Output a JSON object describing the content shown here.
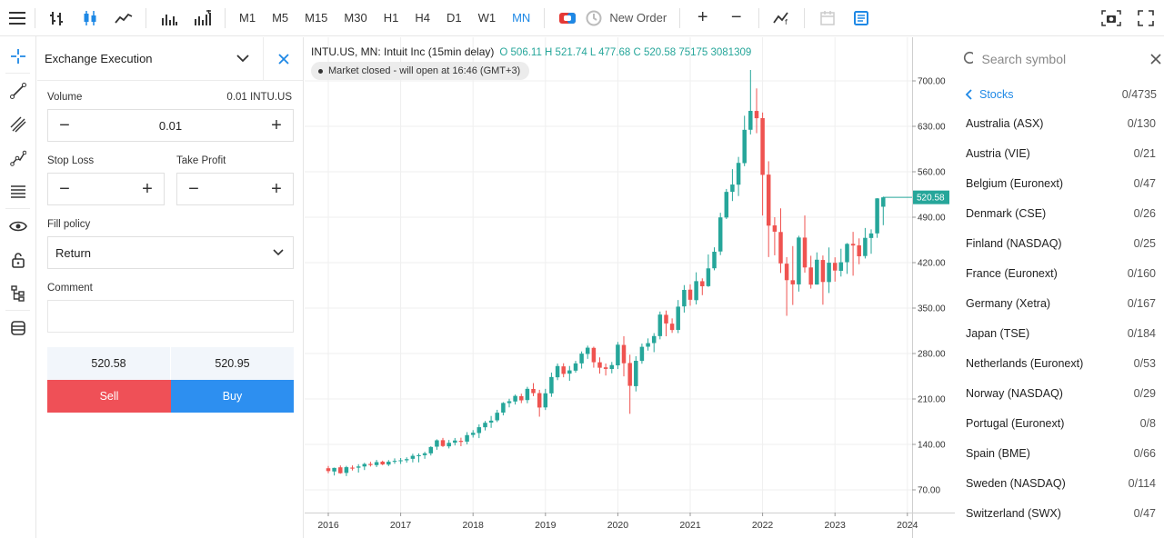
{
  "toolbar": {
    "timeframes": [
      "M1",
      "M5",
      "M15",
      "M30",
      "H1",
      "H4",
      "D1",
      "W1",
      "MN"
    ],
    "active_timeframe": "MN",
    "new_order_label": "New Order"
  },
  "order_panel": {
    "title": "Exchange Execution",
    "volume_label": "Volume",
    "volume_hint": "0.01 INTU.US",
    "volume_value": "0.01",
    "stop_loss_label": "Stop Loss",
    "take_profit_label": "Take Profit",
    "fill_policy_label": "Fill policy",
    "fill_policy_value": "Return",
    "comment_label": "Comment",
    "bid": "520.58",
    "ask": "520.95",
    "sell_label": "Sell",
    "buy_label": "Buy"
  },
  "chart": {
    "title": "INTU.US, MN: Intuit Inc (15min delay)",
    "ohlc": "O 506.11 H 521.74 L 477.68 C 520.58 75175 3081309",
    "market_status": "Market closed - will open at 16:46 (GMT+3)",
    "last_price_label": "520.58",
    "up_color": "#26a69a",
    "down_color": "#ef5350"
  },
  "chart_data": {
    "type": "candlestick",
    "title": "INTU.US, MN: Intuit Inc (15min delay)",
    "y_ticks": [
      70,
      140,
      210,
      280,
      350,
      420,
      490,
      560,
      630,
      700
    ],
    "ylim": [
      35,
      735
    ],
    "x_tick_labels": [
      "2016",
      "2017",
      "2018",
      "2019",
      "2020",
      "2021",
      "2022",
      "2023",
      "2024"
    ],
    "x_tick_positions": [
      2016,
      2017,
      2018,
      2019,
      2020,
      2021,
      2022,
      2023,
      2024
    ],
    "last_close": 520.58,
    "candles": [
      {
        "x": 2016.0,
        "o": 103.3,
        "h": 106.8,
        "l": 95.6,
        "c": 98.9
      },
      {
        "x": 2016.083,
        "o": 98.3,
        "h": 104.3,
        "l": 92.1,
        "c": 103.8
      },
      {
        "x": 2016.167,
        "o": 104.7,
        "h": 107.6,
        "l": 94.8,
        "c": 95.6
      },
      {
        "x": 2016.25,
        "o": 96.1,
        "h": 106.9,
        "l": 91.2,
        "c": 104.9
      },
      {
        "x": 2016.333,
        "o": 104.3,
        "h": 107.6,
        "l": 99.8,
        "c": 102.7
      },
      {
        "x": 2016.417,
        "o": 104.1,
        "h": 109.5,
        "l": 96.6,
        "c": 106.0
      },
      {
        "x": 2016.5,
        "o": 106.0,
        "h": 111.7,
        "l": 100.5,
        "c": 109.8
      },
      {
        "x": 2016.583,
        "o": 109.9,
        "h": 113.2,
        "l": 105.9,
        "c": 108.2
      },
      {
        "x": 2016.667,
        "o": 108.1,
        "h": 116.1,
        "l": 105.1,
        "c": 112.7
      },
      {
        "x": 2016.75,
        "o": 113.4,
        "h": 115.0,
        "l": 107.9,
        "c": 109.2
      },
      {
        "x": 2016.833,
        "o": 108.9,
        "h": 115.9,
        "l": 106.6,
        "c": 113.3
      },
      {
        "x": 2016.917,
        "o": 113.3,
        "h": 118.5,
        "l": 110.1,
        "c": 114.6
      },
      {
        "x": 2017.0,
        "o": 114.8,
        "h": 119.0,
        "l": 109.9,
        "c": 115.5
      },
      {
        "x": 2017.083,
        "o": 115.5,
        "h": 120.1,
        "l": 111.8,
        "c": 117.3
      },
      {
        "x": 2017.167,
        "o": 117.8,
        "h": 125.6,
        "l": 112.3,
        "c": 122.4
      },
      {
        "x": 2017.25,
        "o": 121.8,
        "h": 126.2,
        "l": 112.3,
        "c": 123.3
      },
      {
        "x": 2017.333,
        "o": 123.4,
        "h": 128.6,
        "l": 117.8,
        "c": 126.2
      },
      {
        "x": 2017.417,
        "o": 126.2,
        "h": 137.1,
        "l": 122.9,
        "c": 136.0
      },
      {
        "x": 2017.5,
        "o": 136.5,
        "h": 147.8,
        "l": 131.7,
        "c": 146.3
      },
      {
        "x": 2017.583,
        "o": 146.5,
        "h": 150.0,
        "l": 136.0,
        "c": 137.5
      },
      {
        "x": 2017.667,
        "o": 137.0,
        "h": 146.8,
        "l": 133.8,
        "c": 142.4
      },
      {
        "x": 2017.75,
        "o": 142.6,
        "h": 149.9,
        "l": 138.4,
        "c": 146.0
      },
      {
        "x": 2017.833,
        "o": 145.5,
        "h": 150.3,
        "l": 137.2,
        "c": 143.8
      },
      {
        "x": 2017.917,
        "o": 144.3,
        "h": 158.9,
        "l": 140.1,
        "c": 154.3
      },
      {
        "x": 2018.0,
        "o": 154.6,
        "h": 162.0,
        "l": 150.5,
        "c": 157.9
      },
      {
        "x": 2018.083,
        "o": 157.5,
        "h": 170.8,
        "l": 149.7,
        "c": 166.5
      },
      {
        "x": 2018.167,
        "o": 166.4,
        "h": 176.1,
        "l": 161.5,
        "c": 173.3
      },
      {
        "x": 2018.25,
        "o": 173.6,
        "h": 183.8,
        "l": 165.5,
        "c": 176.6
      },
      {
        "x": 2018.333,
        "o": 177.1,
        "h": 193.3,
        "l": 174.4,
        "c": 188.8
      },
      {
        "x": 2018.417,
        "o": 189.0,
        "h": 205.1,
        "l": 184.7,
        "c": 203.8
      },
      {
        "x": 2018.5,
        "o": 203.6,
        "h": 210.4,
        "l": 197.0,
        "c": 206.5
      },
      {
        "x": 2018.583,
        "o": 206.1,
        "h": 216.8,
        "l": 201.4,
        "c": 214.7
      },
      {
        "x": 2018.667,
        "o": 214.3,
        "h": 218.1,
        "l": 203.6,
        "c": 207.9
      },
      {
        "x": 2018.75,
        "o": 208.3,
        "h": 228.7,
        "l": 203.4,
        "c": 225.6
      },
      {
        "x": 2018.833,
        "o": 225.4,
        "h": 234.4,
        "l": 214.3,
        "c": 219.0
      },
      {
        "x": 2018.917,
        "o": 219.0,
        "h": 224.1,
        "l": 182.7,
        "c": 196.8
      },
      {
        "x": 2019.0,
        "o": 197.0,
        "h": 225.6,
        "l": 193.0,
        "c": 218.7
      },
      {
        "x": 2019.083,
        "o": 218.6,
        "h": 250.7,
        "l": 213.3,
        "c": 243.8
      },
      {
        "x": 2019.167,
        "o": 243.4,
        "h": 264.6,
        "l": 239.0,
        "c": 260.7
      },
      {
        "x": 2019.25,
        "o": 260.2,
        "h": 265.0,
        "l": 243.4,
        "c": 248.6
      },
      {
        "x": 2019.333,
        "o": 249.0,
        "h": 260.8,
        "l": 238.0,
        "c": 254.0
      },
      {
        "x": 2019.417,
        "o": 253.6,
        "h": 268.7,
        "l": 250.5,
        "c": 264.8
      },
      {
        "x": 2019.5,
        "o": 264.8,
        "h": 283.2,
        "l": 256.8,
        "c": 279.8
      },
      {
        "x": 2019.583,
        "o": 279.3,
        "h": 292.1,
        "l": 271.8,
        "c": 289.0
      },
      {
        "x": 2019.667,
        "o": 288.7,
        "h": 290.6,
        "l": 258.2,
        "c": 266.6
      },
      {
        "x": 2019.75,
        "o": 266.5,
        "h": 274.1,
        "l": 249.0,
        "c": 258.1
      },
      {
        "x": 2019.833,
        "o": 258.7,
        "h": 264.6,
        "l": 246.1,
        "c": 256.3
      },
      {
        "x": 2019.917,
        "o": 256.2,
        "h": 267.0,
        "l": 249.5,
        "c": 262.2
      },
      {
        "x": 2020.0,
        "o": 261.8,
        "h": 297.8,
        "l": 256.1,
        "c": 293.6
      },
      {
        "x": 2020.083,
        "o": 293.2,
        "h": 306.6,
        "l": 244.8,
        "c": 265.0
      },
      {
        "x": 2020.167,
        "o": 265.4,
        "h": 278.2,
        "l": 187.1,
        "c": 230.2
      },
      {
        "x": 2020.25,
        "o": 229.7,
        "h": 275.8,
        "l": 221.6,
        "c": 268.8
      },
      {
        "x": 2020.333,
        "o": 268.6,
        "h": 295.3,
        "l": 264.3,
        "c": 290.3
      },
      {
        "x": 2020.417,
        "o": 290.5,
        "h": 303.3,
        "l": 284.5,
        "c": 296.0
      },
      {
        "x": 2020.5,
        "o": 296.1,
        "h": 311.4,
        "l": 282.1,
        "c": 306.9
      },
      {
        "x": 2020.583,
        "o": 306.8,
        "h": 344.7,
        "l": 301.9,
        "c": 340.0
      },
      {
        "x": 2020.667,
        "o": 339.6,
        "h": 346.2,
        "l": 306.6,
        "c": 326.3
      },
      {
        "x": 2020.75,
        "o": 326.0,
        "h": 334.1,
        "l": 311.8,
        "c": 316.2
      },
      {
        "x": 2020.833,
        "o": 316.4,
        "h": 362.4,
        "l": 311.4,
        "c": 352.2
      },
      {
        "x": 2020.917,
        "o": 352.6,
        "h": 385.4,
        "l": 343.1,
        "c": 378.0
      },
      {
        "x": 2021.0,
        "o": 378.4,
        "h": 386.6,
        "l": 353.7,
        "c": 362.8
      },
      {
        "x": 2021.083,
        "o": 362.2,
        "h": 405.1,
        "l": 355.6,
        "c": 391.5
      },
      {
        "x": 2021.167,
        "o": 391.4,
        "h": 395.8,
        "l": 369.9,
        "c": 383.6
      },
      {
        "x": 2021.25,
        "o": 383.8,
        "h": 432.6,
        "l": 382.6,
        "c": 411.2
      },
      {
        "x": 2021.333,
        "o": 411.3,
        "h": 443.6,
        "l": 408.2,
        "c": 436.8
      },
      {
        "x": 2021.417,
        "o": 437.2,
        "h": 496.8,
        "l": 431.6,
        "c": 489.7
      },
      {
        "x": 2021.5,
        "o": 489.5,
        "h": 533.5,
        "l": 487.2,
        "c": 529.0
      },
      {
        "x": 2021.583,
        "o": 529.1,
        "h": 564.0,
        "l": 514.9,
        "c": 540.3
      },
      {
        "x": 2021.667,
        "o": 540.1,
        "h": 582.9,
        "l": 522.6,
        "c": 573.7
      },
      {
        "x": 2021.75,
        "o": 573.3,
        "h": 646.3,
        "l": 568.6,
        "c": 624.6
      },
      {
        "x": 2021.833,
        "o": 624.7,
        "h": 716.8,
        "l": 617.5,
        "c": 653.8
      },
      {
        "x": 2021.917,
        "o": 653.7,
        "h": 688.4,
        "l": 619.4,
        "c": 642.5
      },
      {
        "x": 2022.0,
        "o": 642.6,
        "h": 651.3,
        "l": 492.6,
        "c": 555.2
      },
      {
        "x": 2022.083,
        "o": 555.6,
        "h": 576.2,
        "l": 428.6,
        "c": 477.0
      },
      {
        "x": 2022.167,
        "o": 477.4,
        "h": 490.0,
        "l": 431.3,
        "c": 467.7
      },
      {
        "x": 2022.25,
        "o": 467.2,
        "h": 503.7,
        "l": 404.0,
        "c": 418.8
      },
      {
        "x": 2022.333,
        "o": 418.4,
        "h": 428.4,
        "l": 338.1,
        "c": 393.0
      },
      {
        "x": 2022.417,
        "o": 392.9,
        "h": 445.5,
        "l": 354.8,
        "c": 386.5
      },
      {
        "x": 2022.5,
        "o": 386.5,
        "h": 461.4,
        "l": 375.4,
        "c": 458.7
      },
      {
        "x": 2022.583,
        "o": 458.6,
        "h": 492.7,
        "l": 404.6,
        "c": 412.6
      },
      {
        "x": 2022.667,
        "o": 412.6,
        "h": 430.6,
        "l": 380.0,
        "c": 386.1
      },
      {
        "x": 2022.75,
        "o": 386.3,
        "h": 435.8,
        "l": 386.1,
        "c": 424.5
      },
      {
        "x": 2022.833,
        "o": 424.1,
        "h": 431.0,
        "l": 355.2,
        "c": 390.2
      },
      {
        "x": 2022.917,
        "o": 390.1,
        "h": 443.4,
        "l": 373.2,
        "c": 419.9
      },
      {
        "x": 2023.0,
        "o": 419.7,
        "h": 428.2,
        "l": 390.8,
        "c": 407.8
      },
      {
        "x": 2023.083,
        "o": 407.4,
        "h": 441.4,
        "l": 398.6,
        "c": 420.6
      },
      {
        "x": 2023.167,
        "o": 420.7,
        "h": 450.1,
        "l": 402.7,
        "c": 448.9
      },
      {
        "x": 2023.25,
        "o": 449.0,
        "h": 467.4,
        "l": 399.9,
        "c": 446.4
      },
      {
        "x": 2023.333,
        "o": 446.6,
        "h": 457.4,
        "l": 417.5,
        "c": 429.8
      },
      {
        "x": 2023.417,
        "o": 430.2,
        "h": 473.4,
        "l": 426.4,
        "c": 458.2
      },
      {
        "x": 2023.5,
        "o": 458.0,
        "h": 471.2,
        "l": 433.6,
        "c": 465.0
      },
      {
        "x": 2023.583,
        "o": 465.1,
        "h": 519.5,
        "l": 458.2,
        "c": 519.0
      },
      {
        "x": 2023.667,
        "o": 506.11,
        "h": 521.74,
        "l": 477.68,
        "c": 520.58
      }
    ]
  },
  "symbols": {
    "search_placeholder": "Search symbol",
    "category": "Stocks",
    "category_count": "0/4735",
    "items": [
      {
        "name": "Australia (ASX)",
        "count": "0/130"
      },
      {
        "name": "Austria (VIE)",
        "count": "0/21"
      },
      {
        "name": "Belgium (Euronext)",
        "count": "0/47"
      },
      {
        "name": "Denmark (CSE)",
        "count": "0/26"
      },
      {
        "name": "Finland (NASDAQ)",
        "count": "0/25"
      },
      {
        "name": "France (Euronext)",
        "count": "0/160"
      },
      {
        "name": "Germany (Xetra)",
        "count": "0/167"
      },
      {
        "name": "Japan (TSE)",
        "count": "0/184"
      },
      {
        "name": "Netherlands (Euronext)",
        "count": "0/53"
      },
      {
        "name": "Norway (NASDAQ)",
        "count": "0/29"
      },
      {
        "name": "Portugal (Euronext)",
        "count": "0/8"
      },
      {
        "name": "Spain (BME)",
        "count": "0/66"
      },
      {
        "name": "Sweden (NASDAQ)",
        "count": "0/114"
      },
      {
        "name": "Switzerland (SWX)",
        "count": "0/47"
      }
    ]
  }
}
